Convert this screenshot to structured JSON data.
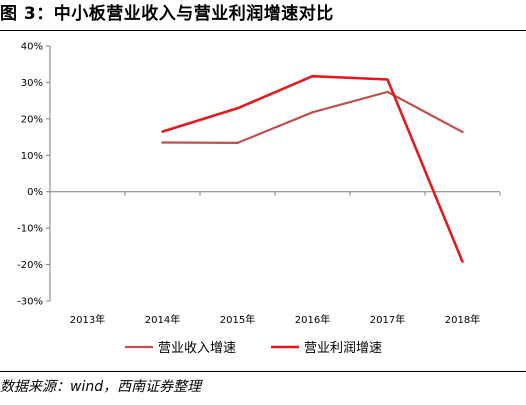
{
  "title": "图 3：中小板营业收入与营业利润增速对比",
  "source": "数据来源：wind，西南证券整理",
  "chart_data": {
    "type": "line",
    "categories": [
      "2013年",
      "2014年",
      "2015年",
      "2016年",
      "2017年",
      "2018年"
    ],
    "yticks": [
      "40%",
      "30%",
      "20%",
      "10%",
      "0%",
      "-10%",
      "-20%",
      "-30%"
    ],
    "ylim": [
      -0.3,
      0.4
    ],
    "grid": false,
    "legend_position": "bottom",
    "series": [
      {
        "name": "营业收入增速",
        "color": "#c0504d",
        "values": [
          null,
          0.135,
          0.134,
          0.218,
          0.274,
          0.164
        ]
      },
      {
        "name": "营业利润增速",
        "color": "#e31a1c",
        "values": [
          null,
          0.165,
          0.229,
          0.317,
          0.308,
          -0.192
        ]
      }
    ]
  }
}
